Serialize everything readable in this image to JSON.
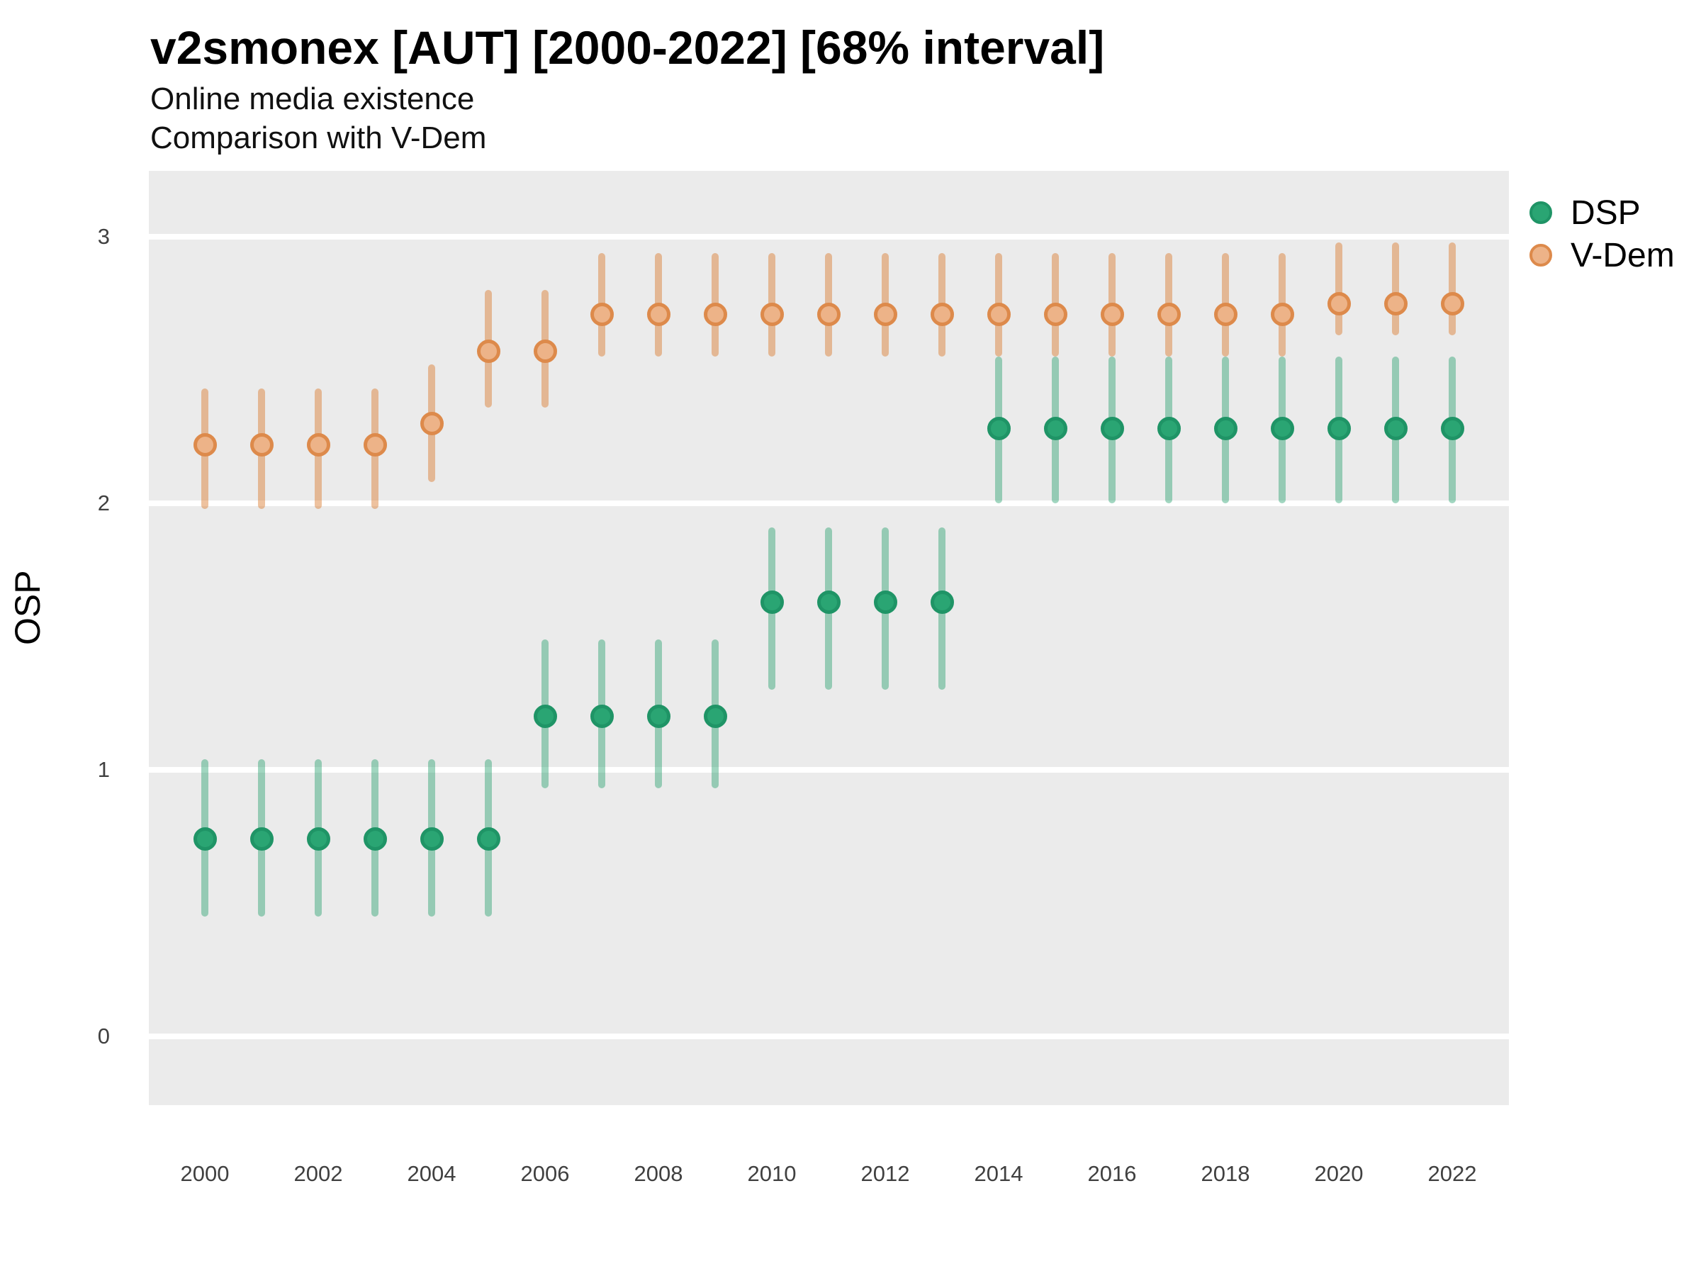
{
  "header": {
    "title": "v2smonex [AUT] [2000-2022] [68% interval]",
    "subtitle1": "Online media existence",
    "subtitle2": "Comparison with V-Dem"
  },
  "axes": {
    "y": {
      "label": "OSP",
      "ticks": [
        3,
        2,
        1,
        0
      ],
      "tick_labels": [
        "3",
        "2",
        "1",
        "0"
      ]
    },
    "x": {
      "ticks": [
        2000,
        2002,
        2004,
        2006,
        2008,
        2010,
        2012,
        2014,
        2016,
        2018,
        2020,
        2022
      ],
      "tick_labels": [
        "2000",
        "2002",
        "2004",
        "2006",
        "2008",
        "2010",
        "2012",
        "2014",
        "2016",
        "2018",
        "2020",
        "2022"
      ]
    }
  },
  "legend": {
    "items": [
      {
        "label": "DSP"
      },
      {
        "label": "V-Dem"
      }
    ]
  },
  "colors": {
    "panel_background": "#ebebeb",
    "gridline": "#ffffff",
    "dsp_point_fill": "#2aa573",
    "dsp_point_border": "#1f9466",
    "dsp_bar": "rgba(31,158,105,0.42)",
    "vdem_point_fill": "#edb388",
    "vdem_point_border": "#dd8a4b",
    "vdem_bar": "rgba(217,119,42,0.45)"
  },
  "chart_data": {
    "type": "scatter",
    "subtype": "pointrange-interval",
    "title": "v2smonex [AUT] [2000-2022] [68% interval]",
    "xlabel": "",
    "ylabel": "OSP",
    "interval": "68%",
    "x": [
      2000,
      2001,
      2002,
      2003,
      2004,
      2005,
      2006,
      2007,
      2008,
      2009,
      2010,
      2011,
      2012,
      2013,
      2014,
      2015,
      2016,
      2017,
      2018,
      2019,
      2020,
      2021,
      2022
    ],
    "ylim": [
      -0.3,
      3.3
    ],
    "grid": true,
    "legend_position": "right",
    "series": [
      {
        "name": "V-Dem",
        "est": [
          2.22,
          2.22,
          2.22,
          2.22,
          2.3,
          2.57,
          2.57,
          2.71,
          2.71,
          2.71,
          2.71,
          2.71,
          2.71,
          2.71,
          2.71,
          2.71,
          2.71,
          2.71,
          2.71,
          2.71,
          2.75,
          2.75,
          2.75
        ],
        "lo": [
          1.98,
          1.98,
          1.98,
          1.98,
          2.08,
          2.36,
          2.36,
          2.55,
          2.55,
          2.55,
          2.55,
          2.55,
          2.55,
          2.55,
          2.55,
          2.55,
          2.55,
          2.55,
          2.55,
          2.55,
          2.63,
          2.63,
          2.63
        ],
        "hi": [
          2.43,
          2.43,
          2.43,
          2.43,
          2.52,
          2.8,
          2.8,
          2.94,
          2.94,
          2.94,
          2.94,
          2.94,
          2.94,
          2.94,
          2.94,
          2.94,
          2.94,
          2.94,
          2.94,
          2.94,
          2.98,
          2.98,
          2.98
        ]
      },
      {
        "name": "DSP",
        "est": [
          0.74,
          0.74,
          0.74,
          0.74,
          0.74,
          0.74,
          1.2,
          1.2,
          1.2,
          1.2,
          1.63,
          1.63,
          1.63,
          1.63,
          2.28,
          2.28,
          2.28,
          2.28,
          2.28,
          2.28,
          2.28,
          2.28,
          2.28
        ],
        "lo": [
          0.45,
          0.45,
          0.45,
          0.45,
          0.45,
          0.45,
          0.93,
          0.93,
          0.93,
          0.93,
          1.3,
          1.3,
          1.3,
          1.3,
          2.0,
          2.0,
          2.0,
          2.0,
          2.0,
          2.0,
          2.0,
          2.0,
          2.0
        ],
        "hi": [
          1.04,
          1.04,
          1.04,
          1.04,
          1.04,
          1.04,
          1.49,
          1.49,
          1.49,
          1.49,
          1.91,
          1.91,
          1.91,
          1.91,
          2.55,
          2.55,
          2.55,
          2.55,
          2.55,
          2.55,
          2.55,
          2.55,
          2.55
        ]
      }
    ]
  }
}
